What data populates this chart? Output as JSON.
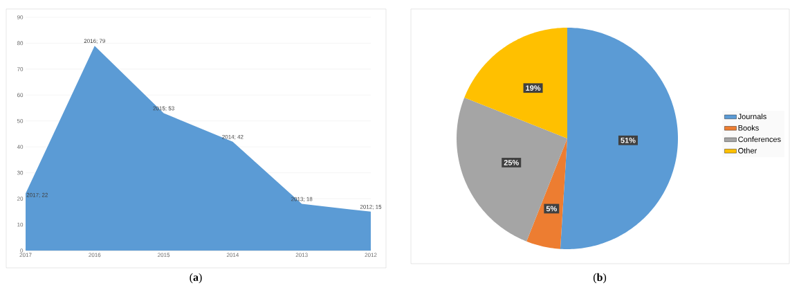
{
  "chart_data": [
    {
      "type": "area",
      "categories": [
        "2017",
        "2016",
        "2015",
        "2014",
        "2013",
        "2012"
      ],
      "values": [
        22,
        79,
        53,
        42,
        18,
        15
      ],
      "color": "#5b9bd5",
      "value_labels": [
        "2017; 22",
        "2016; 79",
        "2015; 53",
        "2014; 42",
        "2013; 18",
        "2012; 15"
      ],
      "ylim": [
        0,
        90
      ],
      "yticks": [
        0,
        10,
        20,
        30,
        40,
        50,
        60,
        70,
        80,
        90
      ],
      "grid": "y",
      "annotations": [
        "(**a**)"
      ]
    },
    {
      "type": "pie",
      "categories": [
        "Journals",
        "Books",
        "Conferences",
        "Other"
      ],
      "values": [
        51,
        5,
        25,
        19
      ],
      "colors": [
        "#5b9bd5",
        "#ed7d31",
        "#a5a5a5",
        "#ffc000"
      ],
      "value_labels": [
        "51%",
        "5%",
        "25%",
        "19%"
      ],
      "legend": "right",
      "annotations": [
        "(**b**)"
      ]
    }
  ]
}
